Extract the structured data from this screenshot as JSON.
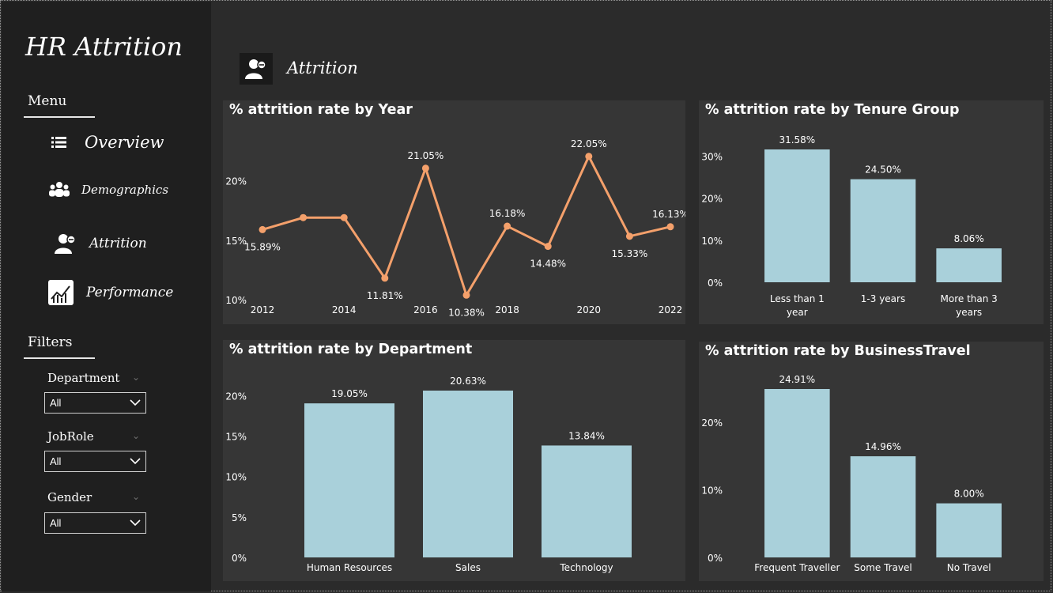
{
  "app": {
    "title": "HR Attrition"
  },
  "sidebar": {
    "menu_label": "Menu",
    "items": [
      {
        "label": "Overview",
        "icon": "list-icon"
      },
      {
        "label": "Demographics",
        "icon": "people-icon"
      },
      {
        "label": "Attrition",
        "icon": "user-minus-icon"
      },
      {
        "label": "Performance",
        "icon": "chart-icon"
      }
    ],
    "filters_label": "Filters",
    "filters": [
      {
        "label": "Department",
        "value": "All"
      },
      {
        "label": "JobRole",
        "value": "All"
      },
      {
        "label": "Gender",
        "value": "All"
      }
    ]
  },
  "page": {
    "title": "Attrition"
  },
  "colors": {
    "line": "#f4a06b",
    "bar": "#a9d0da",
    "card": "#363636",
    "sidebar": "#1f1f1f"
  },
  "chart_data": [
    {
      "type": "line",
      "title": "% attrition rate by Year",
      "x": [
        2012,
        2013,
        2014,
        2015,
        2016,
        2017,
        2018,
        2019,
        2020,
        2021,
        2022
      ],
      "values": [
        15.89,
        16.9,
        16.9,
        11.81,
        21.05,
        10.38,
        16.18,
        14.48,
        22.05,
        15.33,
        16.13
      ],
      "data_labels": [
        "15.89%",
        "",
        "",
        "11.81%",
        "21.05%",
        "10.38%",
        "16.18%",
        "14.48%",
        "22.05%",
        "15.33%",
        "16.13%"
      ],
      "xticks": [
        "2012",
        "2014",
        "2016",
        "2018",
        "2020",
        "2022"
      ],
      "yticks": [
        "10%",
        "15%",
        "20%"
      ],
      "ylim": [
        10,
        22.3
      ]
    },
    {
      "type": "bar",
      "title": "% attrition rate by Tenure Group",
      "categories": [
        "Less than 1 year",
        "1-3 years",
        "More than 3 years"
      ],
      "values": [
        31.58,
        24.5,
        8.06
      ],
      "data_labels": [
        "31.58%",
        "24.50%",
        "8.06%"
      ],
      "yticks": [
        "0%",
        "10%",
        "20%",
        "30%"
      ],
      "ylim": [
        0,
        31.58
      ]
    },
    {
      "type": "bar",
      "title": "% attrition rate by Department",
      "categories": [
        "Human Resources",
        "Sales",
        "Technology"
      ],
      "values": [
        19.05,
        20.63,
        13.84
      ],
      "data_labels": [
        "19.05%",
        "20.63%",
        "13.84%"
      ],
      "yticks": [
        "0%",
        "5%",
        "10%",
        "15%",
        "20%"
      ],
      "ylim": [
        0,
        20.63
      ]
    },
    {
      "type": "bar",
      "title": "% attrition rate by BusinessTravel",
      "categories": [
        "Frequent Traveller",
        "Some Travel",
        "No Travel"
      ],
      "values": [
        24.91,
        14.96,
        8.0
      ],
      "data_labels": [
        "24.91%",
        "14.96%",
        "8.00%"
      ],
      "yticks": [
        "0%",
        "10%",
        "20%"
      ],
      "ylim": [
        0,
        24.91
      ]
    }
  ]
}
